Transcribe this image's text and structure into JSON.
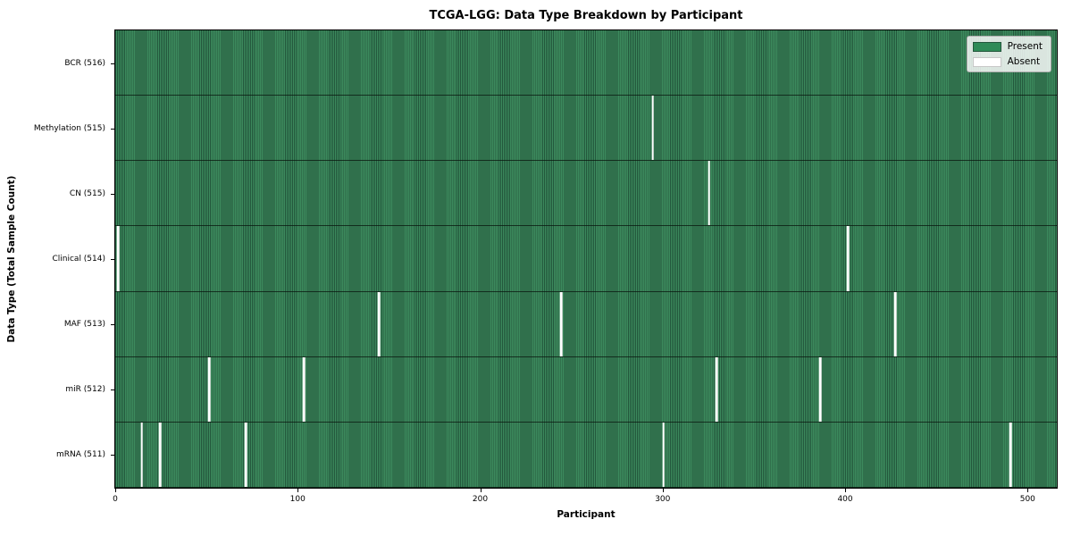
{
  "chart_data": {
    "type": "heatmap",
    "title": "TCGA-LGG: Data Type Breakdown by Participant",
    "xlabel": "Participant",
    "ylabel": "Data Type (Total Sample Count)",
    "n_participants": 516,
    "x_ticks": [
      0,
      100,
      200,
      300,
      400,
      500
    ],
    "x_range": [
      0,
      516
    ],
    "grid": false,
    "legend": {
      "position": "upper right",
      "entries": [
        {
          "label": "Present",
          "color": "#2e8b57"
        },
        {
          "label": "Absent",
          "color": "#ffffff"
        }
      ]
    },
    "rows": [
      {
        "label": "BCR (516)",
        "data_type": "BCR",
        "present_count": 516,
        "absent_participants": []
      },
      {
        "label": "Methylation (515)",
        "data_type": "Methylation",
        "present_count": 515,
        "absent_participants": [
          294
        ]
      },
      {
        "label": "CN (515)",
        "data_type": "CN",
        "present_count": 515,
        "absent_participants": [
          325
        ]
      },
      {
        "label": "Clinical (514)",
        "data_type": "Clinical",
        "present_count": 514,
        "absent_participants": [
          1,
          401
        ]
      },
      {
        "label": "MAF (513)",
        "data_type": "MAF",
        "present_count": 513,
        "absent_participants": [
          144,
          244,
          427
        ]
      },
      {
        "label": "miR (512)",
        "data_type": "miR",
        "present_count": 512,
        "absent_participants": [
          51,
          103,
          329,
          386
        ]
      },
      {
        "label": "mRNA (511)",
        "data_type": "mRNA",
        "present_count": 511,
        "absent_participants": [
          14,
          24,
          71,
          300,
          490
        ]
      }
    ],
    "colors": {
      "present_fill": "#3c8a5d",
      "bar_edge": "#23573c",
      "absent": "#ffffff",
      "row_separator": "#141f18",
      "plot_border": "#000000"
    }
  }
}
